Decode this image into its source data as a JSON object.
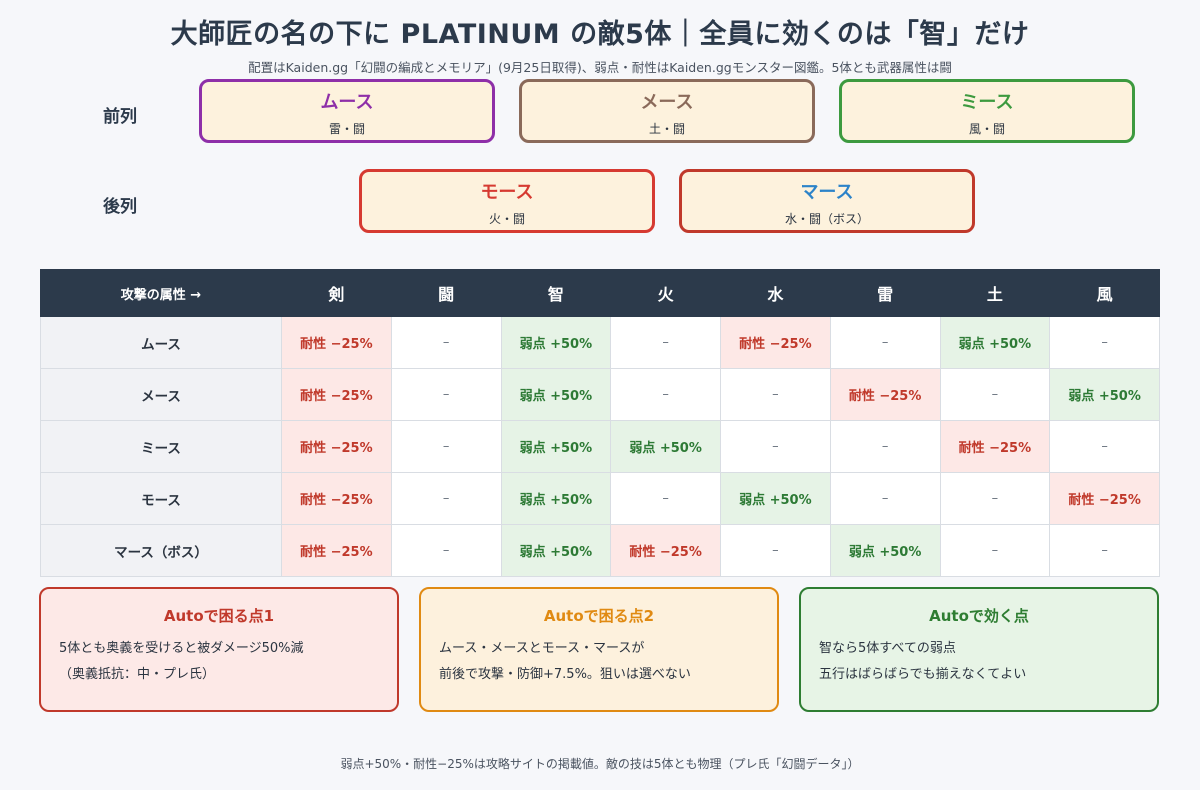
{
  "title": "大師匠の名の下に PLATINUM の敵5体｜全員に効くのは「智」だけ",
  "subtitle": "配置はKaiden.gg「幻闘の編成とメモリア」(9月25日取得)、弱点・耐性はKaiden.ggモンスター図鑑。5体とも武器属性は闘",
  "rows": {
    "front": "前列",
    "back": "後列"
  },
  "enemies": {
    "front": [
      {
        "name": "ムース",
        "elem": "雷・闘",
        "color": "#8e2fa8"
      },
      {
        "name": "メース",
        "elem": "土・闘",
        "color": "#8a6a5a"
      },
      {
        "name": "ミース",
        "elem": "風・闘",
        "color": "#3d9a3f"
      }
    ],
    "back": [
      {
        "name": "モース",
        "elem": "火・闘",
        "color": "#d63a31"
      },
      {
        "name": "マース",
        "elem": "水・闘（ボス）",
        "color": "#2c83c9",
        "border": "#c0392b"
      }
    ]
  },
  "matrix": {
    "corner": "攻撃の属性 →",
    "columns": [
      "剣",
      "闘",
      "智",
      "火",
      "水",
      "雷",
      "土",
      "風"
    ],
    "rows": [
      {
        "name": "ムース",
        "cells": [
          "耐性 −25%",
          "–",
          "弱点 +50%",
          "–",
          "耐性 −25%",
          "–",
          "弱点 +50%",
          "–"
        ]
      },
      {
        "name": "メース",
        "cells": [
          "耐性 −25%",
          "–",
          "弱点 +50%",
          "–",
          "–",
          "耐性 −25%",
          "–",
          "弱点 +50%"
        ]
      },
      {
        "name": "ミース",
        "cells": [
          "耐性 −25%",
          "–",
          "弱点 +50%",
          "弱点 +50%",
          "–",
          "–",
          "耐性 −25%",
          "–"
        ]
      },
      {
        "name": "モース",
        "cells": [
          "耐性 −25%",
          "–",
          "弱点 +50%",
          "–",
          "弱点 +50%",
          "–",
          "–",
          "耐性 −25%"
        ]
      },
      {
        "name": "マース（ボス）",
        "cells": [
          "耐性 −25%",
          "–",
          "弱点 +50%",
          "耐性 −25%",
          "–",
          "弱点 +50%",
          "–",
          "–"
        ]
      }
    ]
  },
  "cards": [
    {
      "title": "Autoで困る点1",
      "lines": [
        "5体とも奥義を受けると被ダメージ50%減",
        "（奥義抵抗：中・プレ氏）"
      ],
      "color": "#c0392b",
      "bg": "#fde9e7"
    },
    {
      "title": "Autoで困る点2",
      "lines": [
        "ムース・メースとモース・マースが",
        "前後で攻撃・防御+7.5%。狙いは選べない"
      ],
      "color": "#e08a12",
      "bg": "#fdf1dd"
    },
    {
      "title": "Autoで効く点",
      "lines": [
        "智なら5体すべての弱点",
        "五行はばらばらでも揃えなくてよい"
      ],
      "color": "#2e7d32",
      "bg": "#e7f4e6"
    }
  ],
  "footnote": "弱点+50%・耐性−25%は攻略サイトの掲載値。敵の技は5体とも物理（プレ氏「幻闘データ」）"
}
